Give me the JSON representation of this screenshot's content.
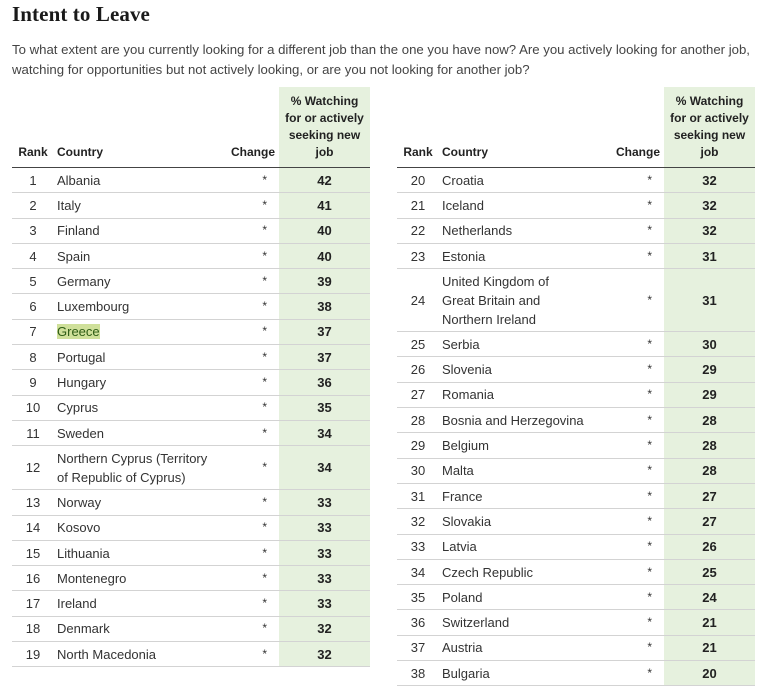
{
  "title": "Intent to Leave",
  "question": "To what extent are you currently looking for a different job than the one you have now? Are you actively looking for another job, watching for opportunities but not actively looking, or are you not looking for another job?",
  "headers": {
    "rank": "Rank",
    "country": "Country",
    "change": "Change",
    "pct_line1": "% Watching",
    "pct_line2": "for or actively",
    "pct_line3": "seeking new job"
  },
  "highlight_color": "#cfe09a",
  "left_table": [
    {
      "rank": "1",
      "country": "Albania",
      "change": "*",
      "pct": "42"
    },
    {
      "rank": "2",
      "country": "Italy",
      "change": "*",
      "pct": "41"
    },
    {
      "rank": "3",
      "country": "Finland",
      "change": "*",
      "pct": "40"
    },
    {
      "rank": "4",
      "country": "Spain",
      "change": "*",
      "pct": "40"
    },
    {
      "rank": "5",
      "country": "Germany",
      "change": "*",
      "pct": "39"
    },
    {
      "rank": "6",
      "country": "Luxembourg",
      "change": "*",
      "pct": "38"
    },
    {
      "rank": "7",
      "country": "Greece",
      "change": "*",
      "pct": "37",
      "highlighted": true
    },
    {
      "rank": "8",
      "country": "Portugal",
      "change": "*",
      "pct": "37"
    },
    {
      "rank": "9",
      "country": "Hungary",
      "change": "*",
      "pct": "36"
    },
    {
      "rank": "10",
      "country": "Cyprus",
      "change": "*",
      "pct": "35"
    },
    {
      "rank": "11",
      "country": "Sweden",
      "change": "*",
      "pct": "34"
    },
    {
      "rank": "12",
      "country": "Northern Cyprus (Territory of Republic of Cyprus)",
      "country_lines": [
        "Northern Cyprus (Territory",
        "of Republic of Cyprus)"
      ],
      "change": "*",
      "pct": "34"
    },
    {
      "rank": "13",
      "country": "Norway",
      "change": "*",
      "pct": "33"
    },
    {
      "rank": "14",
      "country": "Kosovo",
      "change": "*",
      "pct": "33"
    },
    {
      "rank": "15",
      "country": "Lithuania",
      "change": "*",
      "pct": "33"
    },
    {
      "rank": "16",
      "country": "Montenegro",
      "change": "*",
      "pct": "33"
    },
    {
      "rank": "17",
      "country": "Ireland",
      "change": "*",
      "pct": "33"
    },
    {
      "rank": "18",
      "country": "Denmark",
      "change": "*",
      "pct": "32"
    },
    {
      "rank": "19",
      "country": "North Macedonia",
      "change": "*",
      "pct": "32"
    }
  ],
  "right_table": [
    {
      "rank": "20",
      "country": "Croatia",
      "change": "*",
      "pct": "32"
    },
    {
      "rank": "21",
      "country": "Iceland",
      "change": "*",
      "pct": "32"
    },
    {
      "rank": "22",
      "country": "Netherlands",
      "change": "*",
      "pct": "32"
    },
    {
      "rank": "23",
      "country": "Estonia",
      "change": "*",
      "pct": "31"
    },
    {
      "rank": "24",
      "country": "United Kingdom of Great Britain and Northern Ireland",
      "country_lines": [
        "United Kingdom of",
        "Great Britain and",
        "Northern Ireland"
      ],
      "change": "*",
      "pct": "31"
    },
    {
      "rank": "25",
      "country": "Serbia",
      "change": "*",
      "pct": "30"
    },
    {
      "rank": "26",
      "country": "Slovenia",
      "change": "*",
      "pct": "29"
    },
    {
      "rank": "27",
      "country": "Romania",
      "change": "*",
      "pct": "29"
    },
    {
      "rank": "28",
      "country": "Bosnia and Herzegovina",
      "change": "*",
      "pct": "28"
    },
    {
      "rank": "29",
      "country": "Belgium",
      "change": "*",
      "pct": "28"
    },
    {
      "rank": "30",
      "country": "Malta",
      "change": "*",
      "pct": "28"
    },
    {
      "rank": "31",
      "country": "France",
      "change": "*",
      "pct": "27"
    },
    {
      "rank": "32",
      "country": "Slovakia",
      "change": "*",
      "pct": "27"
    },
    {
      "rank": "33",
      "country": "Latvia",
      "change": "*",
      "pct": "26"
    },
    {
      "rank": "34",
      "country": "Czech Republic",
      "change": "*",
      "pct": "25"
    },
    {
      "rank": "35",
      "country": "Poland",
      "change": "*",
      "pct": "24"
    },
    {
      "rank": "36",
      "country": "Switzerland",
      "change": "*",
      "pct": "21"
    },
    {
      "rank": "37",
      "country": "Austria",
      "change": "*",
      "pct": "21"
    },
    {
      "rank": "38",
      "country": "Bulgaria",
      "change": "*",
      "pct": "20"
    }
  ]
}
